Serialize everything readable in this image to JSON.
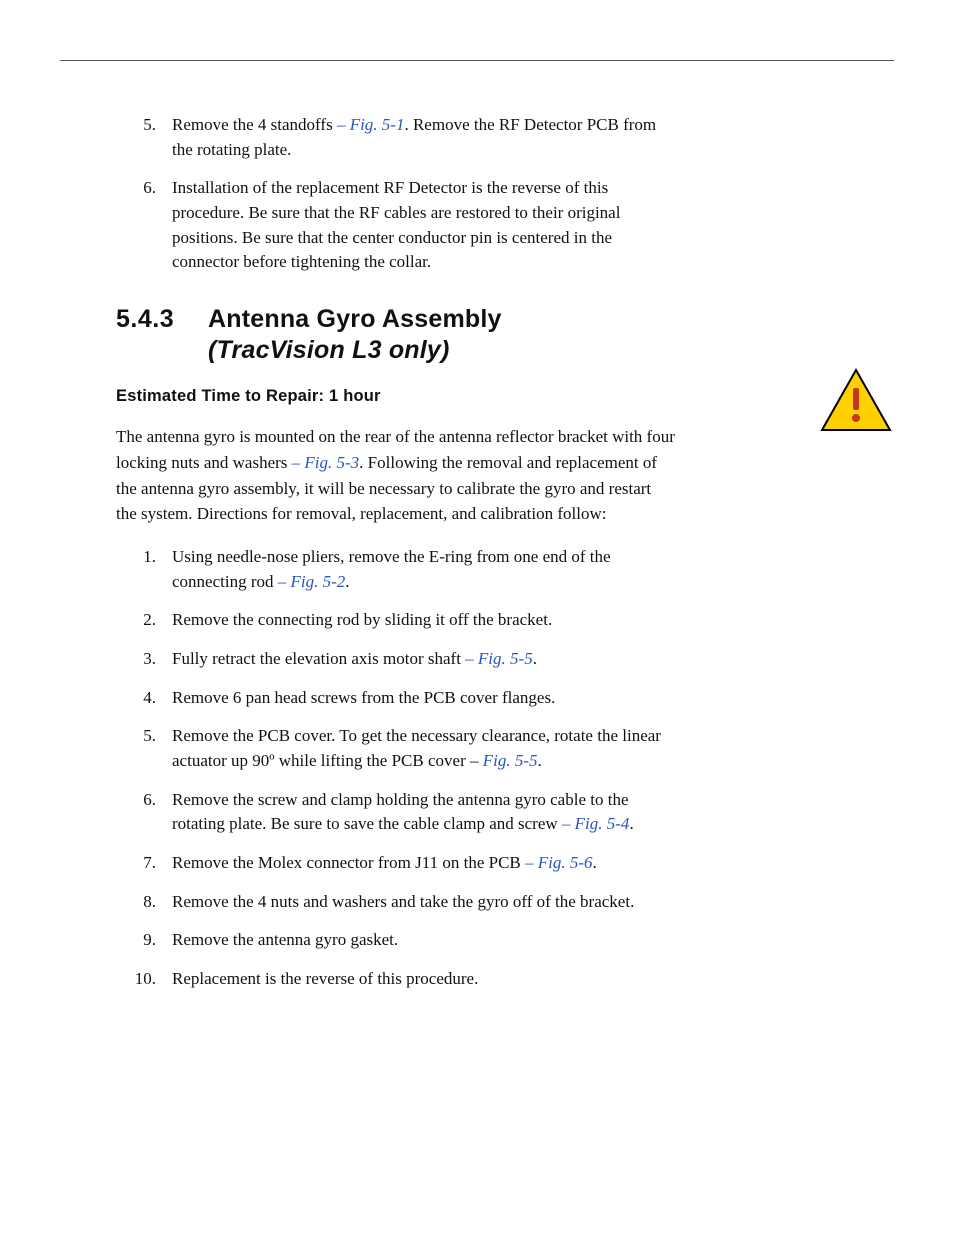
{
  "colors": {
    "text": "#111111",
    "link": "#2a55c0",
    "rule": "#555555",
    "warn_triangle_fill": "#ffd100",
    "warn_triangle_stroke": "#000000",
    "warn_mark": "#c8361c",
    "background": "#ffffff"
  },
  "typography": {
    "body_family": "Palatino Linotype, Book Antiqua, Palatino, serif",
    "body_size_pt": 12,
    "heading_family": "Arial Black, Franklin Gothic Heavy, Helvetica, Arial, sans-serif",
    "heading_size_pt": 18,
    "subheading_size_pt": 12
  },
  "prior_steps": [
    {
      "num": "5.",
      "parts": [
        {
          "t": "Remove the 4 standoffs "
        },
        {
          "t": "– Fig. 5-1",
          "figref": true
        },
        {
          "t": ". Remove the RF Detector PCB from the rotating plate."
        }
      ]
    },
    {
      "num": "6.",
      "parts": [
        {
          "t": "Installation of the replacement RF Detector is the reverse of this procedure. Be sure that the RF cables are restored to their original positions. Be sure that the center conductor pin is centered in the connector before tightening the collar."
        }
      ]
    }
  ],
  "section": {
    "number": "5.4.3",
    "title": "Antenna Gyro Assembly",
    "subtitle": "(TracVision L3 only)",
    "est_label": "Estimated Time to Repair: 1 hour"
  },
  "intro_parts": [
    {
      "t": "The antenna gyro is mounted on the rear of the antenna reflector bracket with four locking nuts and washers "
    },
    {
      "t": "– Fig. 5-3",
      "figref": true
    },
    {
      "t": ". Following the removal and replacement of the antenna gyro assembly, it will be necessary to calibrate the gyro and restart the system. Directions for removal, replacement, and calibration follow:"
    }
  ],
  "steps": [
    {
      "num": "1.",
      "parts": [
        {
          "t": "Using needle-nose pliers, remove the E-ring from one end of the connecting rod "
        },
        {
          "t": "– Fig. 5-2",
          "figref": true
        },
        {
          "t": "."
        }
      ]
    },
    {
      "num": "2.",
      "parts": [
        {
          "t": "Remove the connecting rod by sliding it off the bracket."
        }
      ]
    },
    {
      "num": "3.",
      "parts": [
        {
          "t": "Fully retract the elevation axis motor shaft "
        },
        {
          "t": "– Fig. 5-5",
          "figref": true
        },
        {
          "t": "."
        }
      ]
    },
    {
      "num": "4.",
      "parts": [
        {
          "t": "Remove 6 pan head screws from the PCB cover flanges."
        }
      ]
    },
    {
      "num": "5.",
      "parts": [
        {
          "t": "Remove the PCB cover. To get the necessary clearance, rotate the linear actuator up 90º while lifting the PCB cover –  "
        },
        {
          "t": "Fig. 5-5",
          "figref": true
        },
        {
          "t": "."
        }
      ]
    },
    {
      "num": "6.",
      "parts": [
        {
          "t": "Remove the screw and clamp holding the antenna gyro cable to the rotating plate. Be sure to save the cable clamp and screw "
        },
        {
          "t": "– Fig. 5-4",
          "figref": true
        },
        {
          "t": "."
        }
      ]
    },
    {
      "num": "7.",
      "parts": [
        {
          "t": "Remove the Molex connector from J11 on the PCB "
        },
        {
          "t": "– Fig. 5-6",
          "figref": true
        },
        {
          "t": "."
        }
      ]
    },
    {
      "num": "8.",
      "parts": [
        {
          "t": "Remove the 4 nuts and washers and take the gyro off of the bracket."
        }
      ]
    },
    {
      "num": "9.",
      "parts": [
        {
          "t": "Remove the antenna gyro gasket."
        }
      ]
    },
    {
      "num": "10.",
      "parts": [
        {
          "t": "Replacement is the reverse of this procedure."
        }
      ]
    }
  ]
}
